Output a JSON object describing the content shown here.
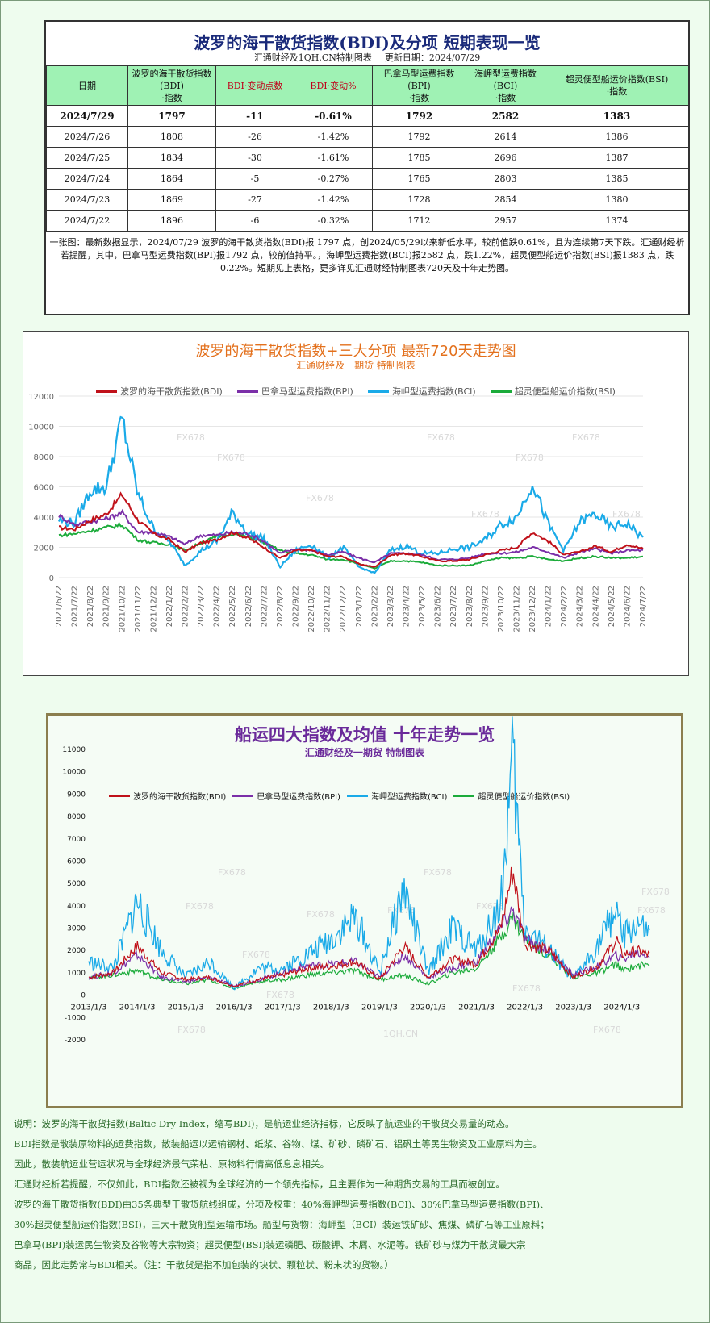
{
  "table": {
    "title": "波罗的海干散货指数(BDI)及分项  短期表现一览",
    "source": "汇通财经及1QH.CN特制图表",
    "update": "更新日期：2024/07/29",
    "headers": [
      "日期",
      "波罗的海干散货指数(BDI)·指数",
      "BDI·变动点数",
      "BDI·变动%",
      "巴拿马型运费指数(BPI)·指数",
      "海岬型运费指数(BCI)·指数",
      "超灵便型船运价指数(BSI)·指数"
    ],
    "rows": [
      [
        "2024/7/29",
        "1797",
        "-11",
        "-0.61%",
        "1792",
        "2582",
        "1383"
      ],
      [
        "2024/7/26",
        "1808",
        "-26",
        "-1.42%",
        "1792",
        "2614",
        "1386"
      ],
      [
        "2024/7/25",
        "1834",
        "-30",
        "-1.61%",
        "1785",
        "2696",
        "1387"
      ],
      [
        "2024/7/24",
        "1864",
        "-5",
        "-0.27%",
        "1765",
        "2803",
        "1385"
      ],
      [
        "2024/7/23",
        "1869",
        "-27",
        "-1.42%",
        "1728",
        "2854",
        "1380"
      ],
      [
        "2024/7/22",
        "1896",
        "-6",
        "-0.32%",
        "1712",
        "2957",
        "1374"
      ]
    ],
    "note": "一张图：最新数据显示，2024/07/29 波罗的海干散货指数(BDI)报 1797 点，创2024/05/29以来新低水平，较前值跌0.61%，且为连续第7天下跌。汇通财经析若提醒，其中，巴拿马型运费指数(BPI)报1792 点，较前值持平。，海岬型运费指数(BCI)报2582 点，跌1.22%，超灵便型船运价指数(BSI)报1383 点，跌0.22%。短期见上表格，更多详见汇通财经特制图表720天及十年走势图。"
  },
  "chart1": {
    "title": "波罗的海干散货指数+三大分项  最新720天走势图",
    "subtitle": "汇通财经及一期货  特制图表",
    "watermark": "FX678"
  },
  "chart2": {
    "title": "船运四大指数及均值  十年走势一览",
    "subtitle": "汇通财经及一期货 特制图表",
    "watermark": "FX678",
    "watermark2": "1QH.CN"
  },
  "description": [
    "说明：波罗的海干散货指数(Baltic Dry Index，缩写BDI)，是航运业经济指标，它反映了航运业的干散货交易量的动态。",
    "BDI指数是散装原物料的运费指数，散装船运以运输钢材、纸浆、谷物、煤、矿砂、磷矿石、铝矾土等民生物资及工业原料为主。",
    "因此，散装航运业营运状况与全球经济景气荣枯、原物料行情高低息息相关。",
    "汇通财经析若提醒，不仅如此，BDI指数还被视为全球经济的一个领先指标，且主要作为一种期货交易的工具而被创立。",
    "波罗的海干散货指数(BDI)由35条典型干散货航线组成，分项及权重：40%海岬型运费指数(BCI)、30%巴拿马型运费指数(BPI)、",
    "30%超灵便型船运价指数(BSI)，三大干散货船型运输市场。船型与货物：海岬型（BCI）装运铁矿砂、焦煤、磷矿石等工业原料；",
    "巴拿马(BPI)装运民生物资及谷物等大宗物资；超灵便型(BSI)装运磷肥、碳酸钾、木屑、水泥等。铁矿砂与煤为干散货最大宗",
    "商品，因此走势常与BDI相关。（注：干散货是指不加包装的块状、颗粒状、粉末状的货物。）"
  ],
  "chart_data": [
    {
      "type": "line",
      "title": "波罗的海干散货指数+三大分项  最新720天走势图",
      "ylim": [
        0,
        12000
      ],
      "yticks": [
        0,
        2000,
        4000,
        6000,
        8000,
        10000,
        12000
      ],
      "legend_position": "top",
      "grid": true,
      "x": [
        "2021/6/22",
        "2021/7/22",
        "2021/8/22",
        "2021/9/22",
        "2021/10/22",
        "2021/11/22",
        "2021/12/22",
        "2022/1/22",
        "2022/2/22",
        "2022/3/22",
        "2022/4/22",
        "2022/5/22",
        "2022/6/22",
        "2022/7/22",
        "2022/8/22",
        "2022/9/22",
        "2022/10/22",
        "2022/11/22",
        "2022/12/22",
        "2023/1/22",
        "2023/2/22",
        "2023/3/22",
        "2023/4/22",
        "2023/5/22",
        "2023/6/22",
        "2023/7/22",
        "2023/8/22",
        "2023/9/22",
        "2023/10/22",
        "2023/11/22",
        "2023/12/22",
        "2024/1/22",
        "2024/2/22",
        "2024/3/22",
        "2024/4/22",
        "2024/5/22",
        "2024/6/22",
        "2024/7/22"
      ],
      "series": [
        {
          "name": "波罗的海干散货指数(BDI)",
          "color": "#c0111a",
          "values": [
            3300,
            3200,
            3800,
            4200,
            5500,
            3800,
            2900,
            2500,
            1700,
            2300,
            2500,
            3000,
            2600,
            2000,
            1300,
            1800,
            1800,
            1400,
            1400,
            900,
            700,
            1500,
            1600,
            1400,
            1100,
            1100,
            1200,
            1500,
            1800,
            2000,
            3000,
            2400,
            1500,
            1700,
            2100,
            1700,
            2200,
            1900
          ]
        },
        {
          "name": "巴拿马型运费指数(BPI)",
          "color": "#7b2fa8",
          "values": [
            4100,
            3500,
            3700,
            3900,
            4300,
            3000,
            3000,
            2700,
            2200,
            2800,
            2800,
            3000,
            2900,
            2400,
            1600,
            1900,
            1800,
            1500,
            1700,
            1300,
            1000,
            1600,
            1600,
            1500,
            1200,
            1200,
            1300,
            1600,
            1600,
            1700,
            2000,
            1700,
            1300,
            1700,
            1900,
            1600,
            1800,
            1800
          ]
        },
        {
          "name": "海岬型运费指数(BCI)",
          "color": "#1aaae8",
          "values": [
            3800,
            3600,
            5800,
            6000,
            10500,
            5500,
            3200,
            2400,
            800,
            1800,
            2400,
            4300,
            2900,
            2600,
            700,
            1800,
            2200,
            1300,
            2000,
            700,
            300,
            1800,
            2100,
            1600,
            1600,
            1900,
            2000,
            2500,
            3500,
            4000,
            6300,
            3500,
            1800,
            3700,
            4200,
            3300,
            3600,
            2600
          ]
        },
        {
          "name": "超灵便型船运价指数(BSI)",
          "color": "#1bab3a",
          "values": [
            2800,
            2900,
            3100,
            3300,
            3500,
            2500,
            2300,
            2200,
            1800,
            2300,
            2700,
            2900,
            2700,
            2300,
            1800,
            1600,
            1500,
            1200,
            1200,
            900,
            600,
            1100,
            1100,
            1000,
            800,
            800,
            800,
            1100,
            1300,
            1300,
            1400,
            1200,
            1100,
            1300,
            1400,
            1300,
            1300,
            1380
          ]
        }
      ]
    },
    {
      "type": "line",
      "title": "船运四大指数及均值  十年走势一览",
      "ylim": [
        -2000,
        11000
      ],
      "yticks": [
        -2000,
        -1000,
        0,
        1000,
        2000,
        3000,
        4000,
        5000,
        6000,
        7000,
        8000,
        9000,
        10000,
        11000
      ],
      "legend_position": "top",
      "grid": false,
      "x": [
        "2013/1/3",
        "2014/1/3",
        "2015/1/3",
        "2016/1/3",
        "2017/1/3",
        "2018/1/3",
        "2019/1/3",
        "2020/1/3",
        "2021/1/3",
        "2022/1/3",
        "2023/1/3",
        "2024/1/3"
      ],
      "x_values": [
        2013.0,
        2013.5,
        2014.0,
        2014.5,
        2015.0,
        2015.5,
        2016.0,
        2016.5,
        2017.0,
        2017.5,
        2018.0,
        2018.5,
        2019.0,
        2019.5,
        2020.0,
        2020.5,
        2021.0,
        2021.5,
        2021.75,
        2022.0,
        2022.5,
        2023.0,
        2023.5,
        2023.9,
        2024.0,
        2024.3,
        2024.57
      ],
      "series": [
        {
          "name": "波罗的海干散货指数(BDI)",
          "color": "#c0111a",
          "values": [
            800,
            1000,
            2200,
            1000,
            700,
            800,
            400,
            700,
            900,
            1200,
            1300,
            1500,
            700,
            2200,
            800,
            1600,
            1400,
            3000,
            5600,
            2300,
            2000,
            800,
            1300,
            2500,
            1800,
            2000,
            1800
          ]
        },
        {
          "name": "巴拿马型运费指数(BPI)",
          "color": "#7b2fa8",
          "values": [
            800,
            1000,
            1800,
            800,
            600,
            800,
            400,
            700,
            1000,
            1300,
            1400,
            1500,
            800,
            1800,
            800,
            1200,
            1500,
            3000,
            3800,
            2500,
            2000,
            900,
            1300,
            1800,
            1600,
            1900,
            1800
          ]
        },
        {
          "name": "海岬型运费指数(BCI)",
          "color": "#1aaae8",
          "values": [
            1500,
            1200,
            4200,
            2000,
            800,
            1500,
            300,
            1200,
            1200,
            1800,
            2500,
            3500,
            1000,
            4800,
            1000,
            3000,
            2000,
            4000,
            10500,
            3000,
            2000,
            700,
            2200,
            4000,
            2500,
            3200,
            2600
          ]
        },
        {
          "name": "超灵便型船运价指数(BSI)",
          "color": "#1bab3a",
          "values": [
            800,
            900,
            1100,
            700,
            500,
            700,
            300,
            600,
            700,
            900,
            1000,
            1100,
            700,
            900,
            500,
            1000,
            1200,
            2600,
            3500,
            2500,
            1800,
            800,
            1000,
            1400,
            1100,
            1300,
            1400
          ]
        }
      ]
    }
  ]
}
